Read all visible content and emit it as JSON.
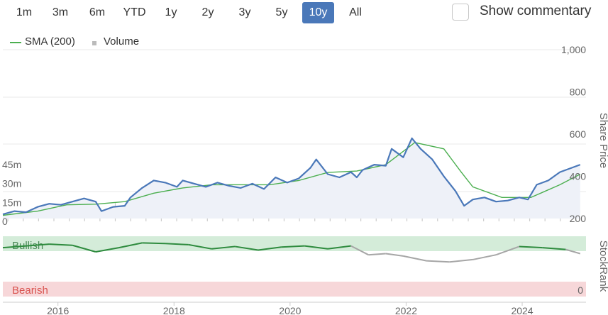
{
  "range_selector": {
    "buttons": [
      {
        "label": "1m",
        "active": false
      },
      {
        "label": "3m",
        "active": false
      },
      {
        "label": "6m",
        "active": false
      },
      {
        "label": "YTD",
        "active": false
      },
      {
        "label": "1y",
        "active": false
      },
      {
        "label": "2y",
        "active": false
      },
      {
        "label": "3y",
        "active": false
      },
      {
        "label": "5y",
        "active": false
      },
      {
        "label": "10y",
        "active": true
      },
      {
        "label": "All",
        "active": false
      }
    ],
    "active_color": "#4a78b9"
  },
  "commentary": {
    "label": "Show commentary",
    "checked": false
  },
  "legend": {
    "sma_label": "SMA (200)",
    "volume_label": "Volume"
  },
  "colors": {
    "price": "#4a78b9",
    "sma": "#4caf50",
    "bullish_zone": "#d4ecd9",
    "bearish_zone": "#f7d7d9",
    "bearish_text": "#d9534f",
    "volume": "#cccccc"
  },
  "chart_data": {
    "type": "line",
    "x_ticks": [
      "2016",
      "2018",
      "2020",
      "2022",
      "2024"
    ],
    "price_axis": {
      "title": "Share Price",
      "ticks": [
        "200",
        "400",
        "600",
        "800",
        "1,000"
      ],
      "ylim": [
        200,
        1000
      ]
    },
    "volume_axis": {
      "ticks": [
        "0",
        "15m",
        "30m",
        "45m"
      ],
      "ylim": [
        0,
        60
      ]
    },
    "stockrank_axis": {
      "title": "StockRank",
      "ticks": [
        "0"
      ],
      "zones": {
        "bullish": "Bullish",
        "bearish": "Bearish"
      }
    },
    "price_series": {
      "name": "Price",
      "points": [
        [
          2014.9,
          220
        ],
        [
          2015.1,
          235
        ],
        [
          2015.3,
          230
        ],
        [
          2015.5,
          255
        ],
        [
          2015.7,
          270
        ],
        [
          2015.9,
          265
        ],
        [
          2016.1,
          280
        ],
        [
          2016.3,
          295
        ],
        [
          2016.5,
          280
        ],
        [
          2016.6,
          235
        ],
        [
          2016.8,
          255
        ],
        [
          2017.0,
          260
        ],
        [
          2017.1,
          300
        ],
        [
          2017.3,
          345
        ],
        [
          2017.5,
          380
        ],
        [
          2017.7,
          370
        ],
        [
          2017.9,
          350
        ],
        [
          2018.0,
          380
        ],
        [
          2018.2,
          365
        ],
        [
          2018.4,
          350
        ],
        [
          2018.6,
          370
        ],
        [
          2018.8,
          355
        ],
        [
          2019.0,
          345
        ],
        [
          2019.2,
          365
        ],
        [
          2019.4,
          340
        ],
        [
          2019.6,
          395
        ],
        [
          2019.8,
          370
        ],
        [
          2020.0,
          390
        ],
        [
          2020.2,
          440
        ],
        [
          2020.3,
          480
        ],
        [
          2020.5,
          410
        ],
        [
          2020.7,
          395
        ],
        [
          2020.9,
          420
        ],
        [
          2021.0,
          395
        ],
        [
          2021.1,
          430
        ],
        [
          2021.3,
          455
        ],
        [
          2021.5,
          450
        ],
        [
          2021.6,
          530
        ],
        [
          2021.8,
          490
        ],
        [
          2021.95,
          580
        ],
        [
          2022.1,
          530
        ],
        [
          2022.3,
          480
        ],
        [
          2022.5,
          400
        ],
        [
          2022.7,
          330
        ],
        [
          2022.85,
          260
        ],
        [
          2023.0,
          290
        ],
        [
          2023.2,
          300
        ],
        [
          2023.4,
          280
        ],
        [
          2023.6,
          285
        ],
        [
          2023.8,
          300
        ],
        [
          2023.95,
          290
        ],
        [
          2024.1,
          360
        ],
        [
          2024.3,
          380
        ],
        [
          2024.5,
          420
        ],
        [
          2024.7,
          440
        ],
        [
          2024.85,
          455
        ]
      ]
    },
    "sma_series": {
      "name": "SMA (200)",
      "points": [
        [
          2014.9,
          215
        ],
        [
          2015.5,
          235
        ],
        [
          2016.0,
          265
        ],
        [
          2016.5,
          268
        ],
        [
          2017.0,
          280
        ],
        [
          2017.5,
          320
        ],
        [
          2018.0,
          345
        ],
        [
          2018.5,
          360
        ],
        [
          2019.0,
          360
        ],
        [
          2019.5,
          360
        ],
        [
          2020.0,
          380
        ],
        [
          2020.5,
          418
        ],
        [
          2021.0,
          425
        ],
        [
          2021.5,
          455
        ],
        [
          2022.0,
          560
        ],
        [
          2022.5,
          530
        ],
        [
          2022.8,
          420
        ],
        [
          2023.0,
          350
        ],
        [
          2023.5,
          300
        ],
        [
          2024.0,
          300
        ],
        [
          2024.5,
          360
        ],
        [
          2024.85,
          410
        ]
      ]
    },
    "stockrank_series": {
      "name": "StockRank",
      "points": [
        [
          2014.9,
          82
        ],
        [
          2015.3,
          85
        ],
        [
          2015.7,
          88
        ],
        [
          2016.1,
          86
        ],
        [
          2016.5,
          75
        ],
        [
          2016.9,
          82
        ],
        [
          2017.3,
          90
        ],
        [
          2017.7,
          89
        ],
        [
          2018.1,
          87
        ],
        [
          2018.5,
          80
        ],
        [
          2018.9,
          84
        ],
        [
          2019.3,
          78
        ],
        [
          2019.7,
          83
        ],
        [
          2020.1,
          85
        ],
        [
          2020.5,
          80
        ],
        [
          2020.9,
          85
        ],
        [
          2021.2,
          70
        ],
        [
          2021.5,
          72
        ],
        [
          2021.8,
          68
        ],
        [
          2022.2,
          60
        ],
        [
          2022.6,
          58
        ],
        [
          2023.0,
          62
        ],
        [
          2023.4,
          70
        ],
        [
          2023.8,
          84
        ],
        [
          2024.2,
          82
        ],
        [
          2024.6,
          79
        ],
        [
          2024.85,
          72
        ]
      ]
    },
    "volume_series": {
      "name": "Volume",
      "values": [
        0.5,
        0.8,
        0.6,
        1.2,
        0.7,
        0.5,
        0.9,
        2.5,
        0.8,
        0.6,
        1.5,
        0.7,
        0.9,
        0.6,
        0.8,
        1.1,
        0.7,
        0.5,
        0.9,
        0.6,
        0.8,
        1.2,
        0.7,
        0.6,
        0.9,
        1.0,
        0.8,
        0.7,
        1.4,
        0.9,
        1.1,
        0.8,
        0.9,
        1.2,
        0.6,
        0.8,
        1.0,
        0.7
      ]
    }
  }
}
